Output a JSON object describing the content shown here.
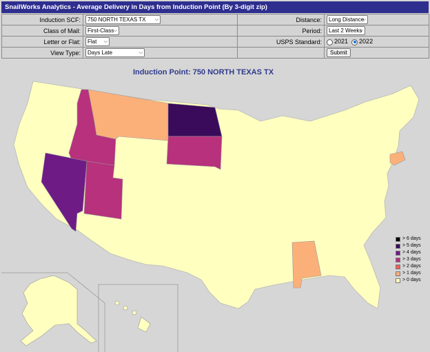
{
  "app": {
    "title": "SnailWorks Analytics - Average Delivery in Days from Induction Point (By 3-digit zip)"
  },
  "form": {
    "induction_scf": {
      "label": "Induction SCF:",
      "value": "750 NORTH TEXAS TX"
    },
    "distance": {
      "label": "Distance:",
      "value": "Long Distance"
    },
    "class_of_mail": {
      "label": "Class of Mail:",
      "value": "First-Class"
    },
    "period": {
      "label": "Period:",
      "value": "Last 2 Weeks"
    },
    "letter_or_flat": {
      "label": "Letter or Flat:",
      "value": "Flat"
    },
    "usps_standard": {
      "label": "USPS Standard:",
      "options": [
        "2021",
        "2022"
      ],
      "selected": "2022"
    },
    "view_type": {
      "label": "View Type:",
      "value": "Days Late"
    },
    "submit_label": "Submit"
  },
  "map": {
    "title": "Induction Point: 750 NORTH TEXAS TX",
    "states": [
      {
        "name": "Montana",
        "days_late": "> 1 days",
        "color": "#fbb07a"
      },
      {
        "name": "North Dakota",
        "days_late": "> 5 days",
        "color": "#3a0b5a"
      },
      {
        "name": "South Dakota",
        "days_late": "> 3 days",
        "color": "#b7317c"
      },
      {
        "name": "Idaho",
        "days_late": "> 3 days",
        "color": "#b7317c"
      },
      {
        "name": "Nevada",
        "days_late": "> 4 days",
        "color": "#6e1b86"
      },
      {
        "name": "Utah",
        "days_late": "> 3 days",
        "color": "#b7317c"
      },
      {
        "name": "Alabama",
        "days_late": "> 1 days",
        "color": "#fbb07a"
      },
      {
        "name": "Connecticut",
        "days_late": "> 1 days",
        "color": "#fbb07a"
      }
    ],
    "base_color": "#ffffc0",
    "legend": [
      {
        "label": "> 6 days",
        "color": "#000004"
      },
      {
        "label": "> 5 days",
        "color": "#3a0b5a"
      },
      {
        "label": "> 4 days",
        "color": "#6e1b86"
      },
      {
        "label": "> 3 days",
        "color": "#b7317c"
      },
      {
        "label": "> 2 days",
        "color": "#f0605d"
      },
      {
        "label": "> 1 days",
        "color": "#fbb07a"
      },
      {
        "label": "> 0 days",
        "color": "#ffffc0"
      }
    ]
  }
}
